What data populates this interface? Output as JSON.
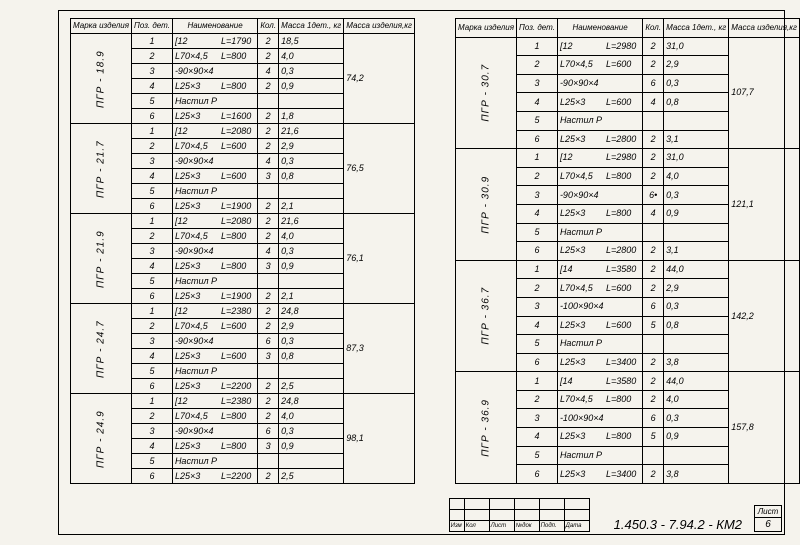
{
  "headers": {
    "mark": "Марка изделия",
    "pos": "Поз. дет.",
    "name": "Наименование",
    "qty": "Кол.",
    "mass1": "Масса 1дет., кг",
    "mass2": "Масса изделия,кг"
  },
  "groups_left": [
    {
      "mark": "ПГР - 18.9",
      "total": "74,2",
      "rows": [
        {
          "p": "1",
          "spec": "[12",
          "len": "L=1790",
          "q": "2",
          "m": "18,5"
        },
        {
          "p": "2",
          "spec": "L70×4,5",
          "len": "L=800",
          "q": "2",
          "m": "4,0"
        },
        {
          "p": "3",
          "spec": "-90×90×4",
          "len": "",
          "q": "4",
          "m": "0,3"
        },
        {
          "p": "4",
          "spec": "L25×3",
          "len": "L=800",
          "q": "2",
          "m": "0,9"
        },
        {
          "p": "5",
          "spec": "Настил Р",
          "len": "",
          "q": "",
          "m": ""
        },
        {
          "p": "6",
          "spec": "L25×3",
          "len": "L=1600",
          "q": "2",
          "m": "1,8"
        }
      ]
    },
    {
      "mark": "ПГР - 21.7",
      "total": "76,5",
      "rows": [
        {
          "p": "1",
          "spec": "[12",
          "len": "L=2080",
          "q": "2",
          "m": "21,6"
        },
        {
          "p": "2",
          "spec": "L70×4,5",
          "len": "L=600",
          "q": "2",
          "m": "2,9"
        },
        {
          "p": "3",
          "spec": "-90×90×4",
          "len": "",
          "q": "4",
          "m": "0,3"
        },
        {
          "p": "4",
          "spec": "L25×3",
          "len": "L=600",
          "q": "3",
          "m": "0,8"
        },
        {
          "p": "5",
          "spec": "Настил Р",
          "len": "",
          "q": "",
          "m": ""
        },
        {
          "p": "6",
          "spec": "L25×3",
          "len": "L=1900",
          "q": "2",
          "m": "2,1"
        }
      ]
    },
    {
      "mark": "ПГР - 21.9",
      "total": "76,1",
      "rows": [
        {
          "p": "1",
          "spec": "[12",
          "len": "L=2080",
          "q": "2",
          "m": "21,6"
        },
        {
          "p": "2",
          "spec": "L70×4,5",
          "len": "L=800",
          "q": "2",
          "m": "4,0"
        },
        {
          "p": "3",
          "spec": "-90×90×4",
          "len": "",
          "q": "4",
          "m": "0,3"
        },
        {
          "p": "4",
          "spec": "L25×3",
          "len": "L=800",
          "q": "3",
          "m": "0,9"
        },
        {
          "p": "5",
          "spec": "Настил Р",
          "len": "",
          "q": "",
          "m": ""
        },
        {
          "p": "6",
          "spec": "L25×3",
          "len": "L=1900",
          "q": "2",
          "m": "2,1"
        }
      ]
    },
    {
      "mark": "ПГР - 24.7",
      "total": "87,3",
      "rows": [
        {
          "p": "1",
          "spec": "[12",
          "len": "L=2380",
          "q": "2",
          "m": "24,8"
        },
        {
          "p": "2",
          "spec": "L70×4,5",
          "len": "L=600",
          "q": "2",
          "m": "2,9"
        },
        {
          "p": "3",
          "spec": "-90×90×4",
          "len": "",
          "q": "6",
          "m": "0,3"
        },
        {
          "p": "4",
          "spec": "L25×3",
          "len": "L=600",
          "q": "3",
          "m": "0,8"
        },
        {
          "p": "5",
          "spec": "Настил Р",
          "len": "",
          "q": "",
          "m": ""
        },
        {
          "p": "6",
          "spec": "L25×3",
          "len": "L=2200",
          "q": "2",
          "m": "2,5"
        }
      ]
    },
    {
      "mark": "ПГР - 24.9",
      "total": "98,1",
      "rows": [
        {
          "p": "1",
          "spec": "[12",
          "len": "L=2380",
          "q": "2",
          "m": "24,8"
        },
        {
          "p": "2",
          "spec": "L70×4,5",
          "len": "L=800",
          "q": "2",
          "m": "4,0"
        },
        {
          "p": "3",
          "spec": "-90×90×4",
          "len": "",
          "q": "6",
          "m": "0,3"
        },
        {
          "p": "4",
          "spec": "L25×3",
          "len": "L=800",
          "q": "3",
          "m": "0,9"
        },
        {
          "p": "5",
          "spec": "Настил Р",
          "len": "",
          "q": "",
          "m": ""
        },
        {
          "p": "6",
          "spec": "L25×3",
          "len": "L=2200",
          "q": "2",
          "m": "2,5"
        }
      ]
    }
  ],
  "groups_right": [
    {
      "mark": "ПГР - 30.7",
      "total": "107,7",
      "rows": [
        {
          "p": "1",
          "spec": "[12",
          "len": "L=2980",
          "q": "2",
          "m": "31,0"
        },
        {
          "p": "2",
          "spec": "L70×4,5",
          "len": "L=600",
          "q": "2",
          "m": "2,9"
        },
        {
          "p": "3",
          "spec": "-90×90×4",
          "len": "",
          "q": "6",
          "m": "0,3"
        },
        {
          "p": "4",
          "spec": "L25×3",
          "len": "L=600",
          "q": "4",
          "m": "0,8"
        },
        {
          "p": "5",
          "spec": "Настил Р",
          "len": "",
          "q": "",
          "m": ""
        },
        {
          "p": "6",
          "spec": "L25×3",
          "len": "L=2800",
          "q": "2",
          "m": "3,1"
        }
      ]
    },
    {
      "mark": "ПГР - 30.9",
      "total": "121,1",
      "rows": [
        {
          "p": "1",
          "spec": "[12",
          "len": "L=2980",
          "q": "2",
          "m": "31,0"
        },
        {
          "p": "2",
          "spec": "L70×4,5",
          "len": "L=800",
          "q": "2",
          "m": "4,0"
        },
        {
          "p": "3",
          "spec": "-90×90×4",
          "len": "",
          "q": "6•",
          "m": "0,3"
        },
        {
          "p": "4",
          "spec": "L25×3",
          "len": "L=800",
          "q": "4",
          "m": "0,9"
        },
        {
          "p": "5",
          "spec": "Настил Р",
          "len": "",
          "q": "",
          "m": ""
        },
        {
          "p": "6",
          "spec": "L25×3",
          "len": "L=2800",
          "q": "2",
          "m": "3,1"
        }
      ]
    },
    {
      "mark": "ПГР - 36.7",
      "total": "142,2",
      "rows": [
        {
          "p": "1",
          "spec": "[14",
          "len": "L=3580",
          "q": "2",
          "m": "44,0"
        },
        {
          "p": "2",
          "spec": "L70×4,5",
          "len": "L=600",
          "q": "2",
          "m": "2,9"
        },
        {
          "p": "3",
          "spec": "-100×90×4",
          "len": "",
          "q": "6",
          "m": "0,3"
        },
        {
          "p": "4",
          "spec": "L25×3",
          "len": "L=600",
          "q": "5",
          "m": "0,8"
        },
        {
          "p": "5",
          "spec": "Настил Р",
          "len": "",
          "q": "",
          "m": ""
        },
        {
          "p": "6",
          "spec": "L25×3",
          "len": "L=3400",
          "q": "2",
          "m": "3,8"
        }
      ]
    },
    {
      "mark": "ПГР - 36.9",
      "total": "157,8",
      "rows": [
        {
          "p": "1",
          "spec": "[14",
          "len": "L=3580",
          "q": "2",
          "m": "44,0"
        },
        {
          "p": "2",
          "spec": "L70×4,5",
          "len": "L=800",
          "q": "2",
          "m": "4,0"
        },
        {
          "p": "3",
          "spec": "-100×90×4",
          "len": "",
          "q": "6",
          "m": "0,3"
        },
        {
          "p": "4",
          "spec": "L25×3",
          "len": "L=800",
          "q": "5",
          "m": "0,9"
        },
        {
          "p": "5",
          "spec": "Настил Р",
          "len": "",
          "q": "",
          "m": ""
        },
        {
          "p": "6",
          "spec": "L25×3",
          "len": "L=3400",
          "q": "2",
          "m": "3,8"
        }
      ]
    }
  ],
  "title_block": {
    "left_labels": [
      "Изм",
      "Кол",
      "Лист",
      "№док",
      "Подп.",
      "Дата"
    ],
    "doc_code": "1.450.3 - 7.94.2 - КМ2",
    "sheet_label": "Лист",
    "sheet_no": "6"
  }
}
